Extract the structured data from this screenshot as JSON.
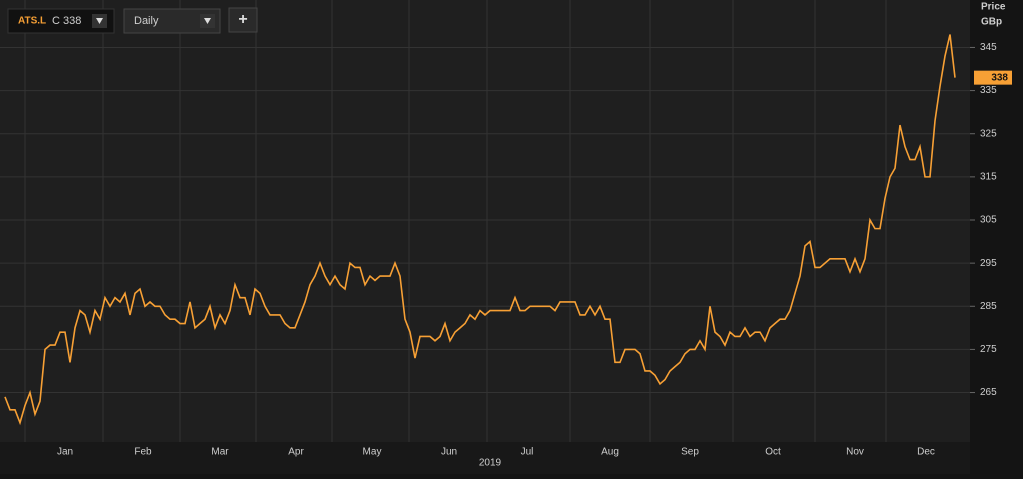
{
  "toolbar": {
    "symbol": "ATS.L",
    "quote": "C 338",
    "interval": "Daily",
    "add": "+"
  },
  "chart_data": {
    "type": "line",
    "y_axis_title": "Price",
    "y_axis_unit": "GBp",
    "color": "#f7a035",
    "last_price": 338,
    "months": [
      "Jan",
      "Feb",
      "Mar",
      "Apr",
      "May",
      "Jun",
      "Jul",
      "Aug",
      "Sep",
      "Oct",
      "Nov",
      "Dec"
    ],
    "year_label": "2019",
    "ylim": [
      254,
      356
    ],
    "yticks": [
      265,
      275,
      285,
      295,
      305,
      315,
      325,
      335,
      345
    ],
    "grid": true,
    "values": [
      264,
      261,
      261,
      258,
      262,
      265,
      260,
      263,
      275,
      276,
      276,
      279,
      279,
      272,
      280,
      284,
      283,
      279,
      284,
      282,
      287,
      285,
      287,
      286,
      288,
      283,
      288,
      289,
      285,
      286,
      285,
      285,
      283,
      282,
      282,
      281,
      281,
      286,
      280,
      281,
      282,
      285,
      280,
      283,
      281,
      284,
      290,
      287,
      287,
      283,
      289,
      288,
      285,
      283,
      283,
      283,
      281,
      280,
      280,
      283,
      286,
      290,
      292,
      295,
      292,
      290,
      292,
      290,
      289,
      295,
      294,
      294,
      290,
      292,
      291,
      292,
      292,
      292,
      295,
      292,
      282,
      279,
      273,
      278,
      278,
      278,
      277,
      278,
      281,
      277,
      279,
      280,
      281,
      283,
      282,
      284,
      283,
      284,
      284,
      284,
      284,
      284,
      287,
      284,
      284,
      285,
      285,
      285,
      285,
      285,
      284,
      286,
      286,
      286,
      286,
      283,
      283,
      285,
      283,
      285,
      282,
      282,
      272,
      272,
      275,
      275,
      275,
      274,
      270,
      270,
      269,
      267,
      268,
      270,
      271,
      272,
      274,
      275,
      275,
      277,
      275,
      285,
      279,
      278,
      276,
      279,
      278,
      278,
      280,
      278,
      279,
      279,
      277,
      280,
      281,
      282,
      282,
      284,
      288,
      292,
      299,
      300,
      294,
      294,
      295,
      296,
      296,
      296,
      296,
      293,
      296,
      293,
      296,
      305,
      303,
      303,
      310,
      315,
      317,
      327,
      322,
      319,
      319,
      322,
      315,
      315,
      328,
      336,
      343,
      348,
      338
    ]
  }
}
